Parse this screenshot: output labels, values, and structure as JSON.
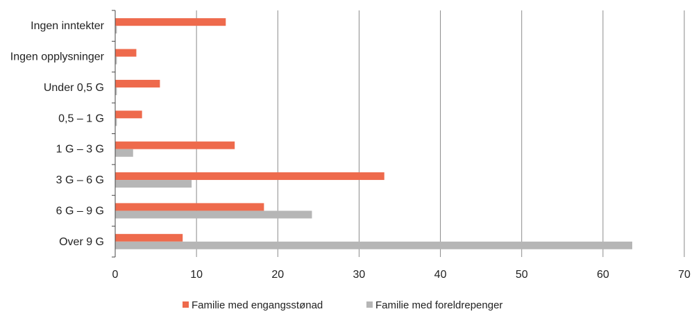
{
  "chart_data": {
    "type": "bar",
    "orientation": "horizontal",
    "title": "",
    "xlabel": "",
    "ylabel": "",
    "xlim": [
      0,
      70
    ],
    "xticks": [
      0,
      10,
      20,
      30,
      40,
      50,
      60,
      70
    ],
    "grid": true,
    "legend_position": "bottom",
    "categories": [
      "Ingen inntekter",
      "Ingen opplysninger",
      "Under 0,5 G",
      "0,5 – 1 G",
      "1 G – 3 G",
      "3 G – 6 G",
      "6 G – 9 G",
      "Over 9 G"
    ],
    "series": [
      {
        "name": "Familie med engangsstønad",
        "color": "#ee6a4c",
        "values": [
          13.6,
          2.6,
          5.5,
          3.3,
          14.7,
          33.1,
          18.3,
          8.3
        ]
      },
      {
        "name": "Familie med foreldrepenger",
        "color": "#b6b6b6",
        "values": [
          0.2,
          0.2,
          0.2,
          0.2,
          2.2,
          9.4,
          24.2,
          63.6
        ]
      }
    ]
  }
}
